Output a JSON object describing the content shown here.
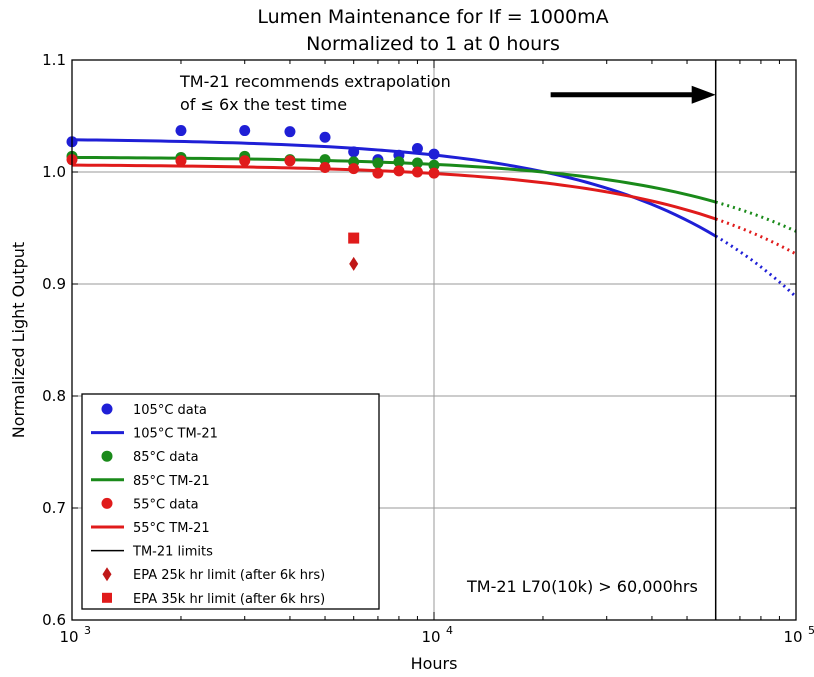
{
  "chart_data": {
    "type": "scatter",
    "title": "Lumen Maintenance for If = 1000mA",
    "subtitle": "Normalized to 1 at 0 hours",
    "xlabel": "Hours",
    "ylabel": "Normalized Light Output",
    "x_scale": "log",
    "xlim": [
      1000,
      100000
    ],
    "ylim": [
      0.6,
      1.1
    ],
    "x_ticks": [
      {
        "value": 1000,
        "base": "10",
        "exp": "3"
      },
      {
        "value": 10000,
        "base": "10",
        "exp": "4"
      },
      {
        "value": 100000,
        "base": "10",
        "exp": "5"
      }
    ],
    "y_ticks": [
      0.6,
      0.7,
      0.8,
      0.9,
      1.0,
      1.1
    ],
    "y_tick_labels": [
      "0.6",
      "0.7",
      "0.8",
      "0.9",
      "1.0",
      "1.1"
    ],
    "grid": true,
    "legend_position": "bottom-left",
    "colors": {
      "blue": "#1f1fd6",
      "green": "#1a8a1a",
      "red": "#e01b1b",
      "black": "#000000"
    },
    "series": [
      {
        "name": "105°C data",
        "kind": "points",
        "marker": "circle",
        "color": "#1f1fd6",
        "x": [
          1000,
          2000,
          3000,
          4000,
          5000,
          6000,
          7000,
          8000,
          9000,
          10000
        ],
        "y": [
          1.027,
          1.037,
          1.037,
          1.036,
          1.031,
          1.018,
          1.011,
          1.015,
          1.021,
          1.016
        ]
      },
      {
        "name": "105°C TM-21",
        "kind": "curve",
        "color": "#1f1fd6",
        "fit": {
          "B": 1.0303,
          "alpha": 1.48e-06,
          "solid_until": 60000
        }
      },
      {
        "name": "85°C data",
        "kind": "points",
        "marker": "circle",
        "color": "#1a8a1a",
        "x": [
          1000,
          2000,
          3000,
          4000,
          5000,
          6000,
          7000,
          8000,
          9000,
          10000
        ],
        "y": [
          1.014,
          1.013,
          1.014,
          1.011,
          1.011,
          1.009,
          1.008,
          1.009,
          1.008,
          1.006
        ]
      },
      {
        "name": "85°C TM-21",
        "kind": "curve",
        "color": "#1a8a1a",
        "fit": {
          "B": 1.0137,
          "alpha": 6.8e-07,
          "solid_until": 60000
        }
      },
      {
        "name": "55°C data",
        "kind": "points",
        "marker": "circle",
        "color": "#e01b1b",
        "x": [
          1000,
          2000,
          3000,
          4000,
          5000,
          6000,
          7000,
          8000,
          9000,
          10000
        ],
        "y": [
          1.011,
          1.01,
          1.01,
          1.01,
          1.004,
          1.003,
          0.999,
          1.001,
          1.0,
          0.999
        ]
      },
      {
        "name": "55°C TM-21",
        "kind": "curve",
        "color": "#e01b1b",
        "fit": {
          "B": 1.007,
          "alpha": 8.3e-07,
          "solid_until": 60000
        }
      },
      {
        "name": "TM-21 limits",
        "kind": "vline",
        "color": "#000000",
        "x": 60000
      },
      {
        "name": "EPA 25k hr limit (after 6k hrs)",
        "kind": "points",
        "marker": "diamond",
        "color": "#c01818",
        "x": [
          6000
        ],
        "y": [
          0.918
        ]
      },
      {
        "name": "EPA 35k hr limit (after 6k hrs)",
        "kind": "points",
        "marker": "square",
        "color": "#e01b1b",
        "x": [
          6000
        ],
        "y": [
          0.941
        ]
      }
    ],
    "annotations": {
      "extrapolation_line1": "TM-21 recommends extrapolation",
      "extrapolation_line2": "of ≤ 6x the test time",
      "arrow": {
        "x_from": 21000,
        "x_to": 60000,
        "y": 1.069
      },
      "l70": "TM-21 L70(10k) > 60,000hrs"
    }
  }
}
